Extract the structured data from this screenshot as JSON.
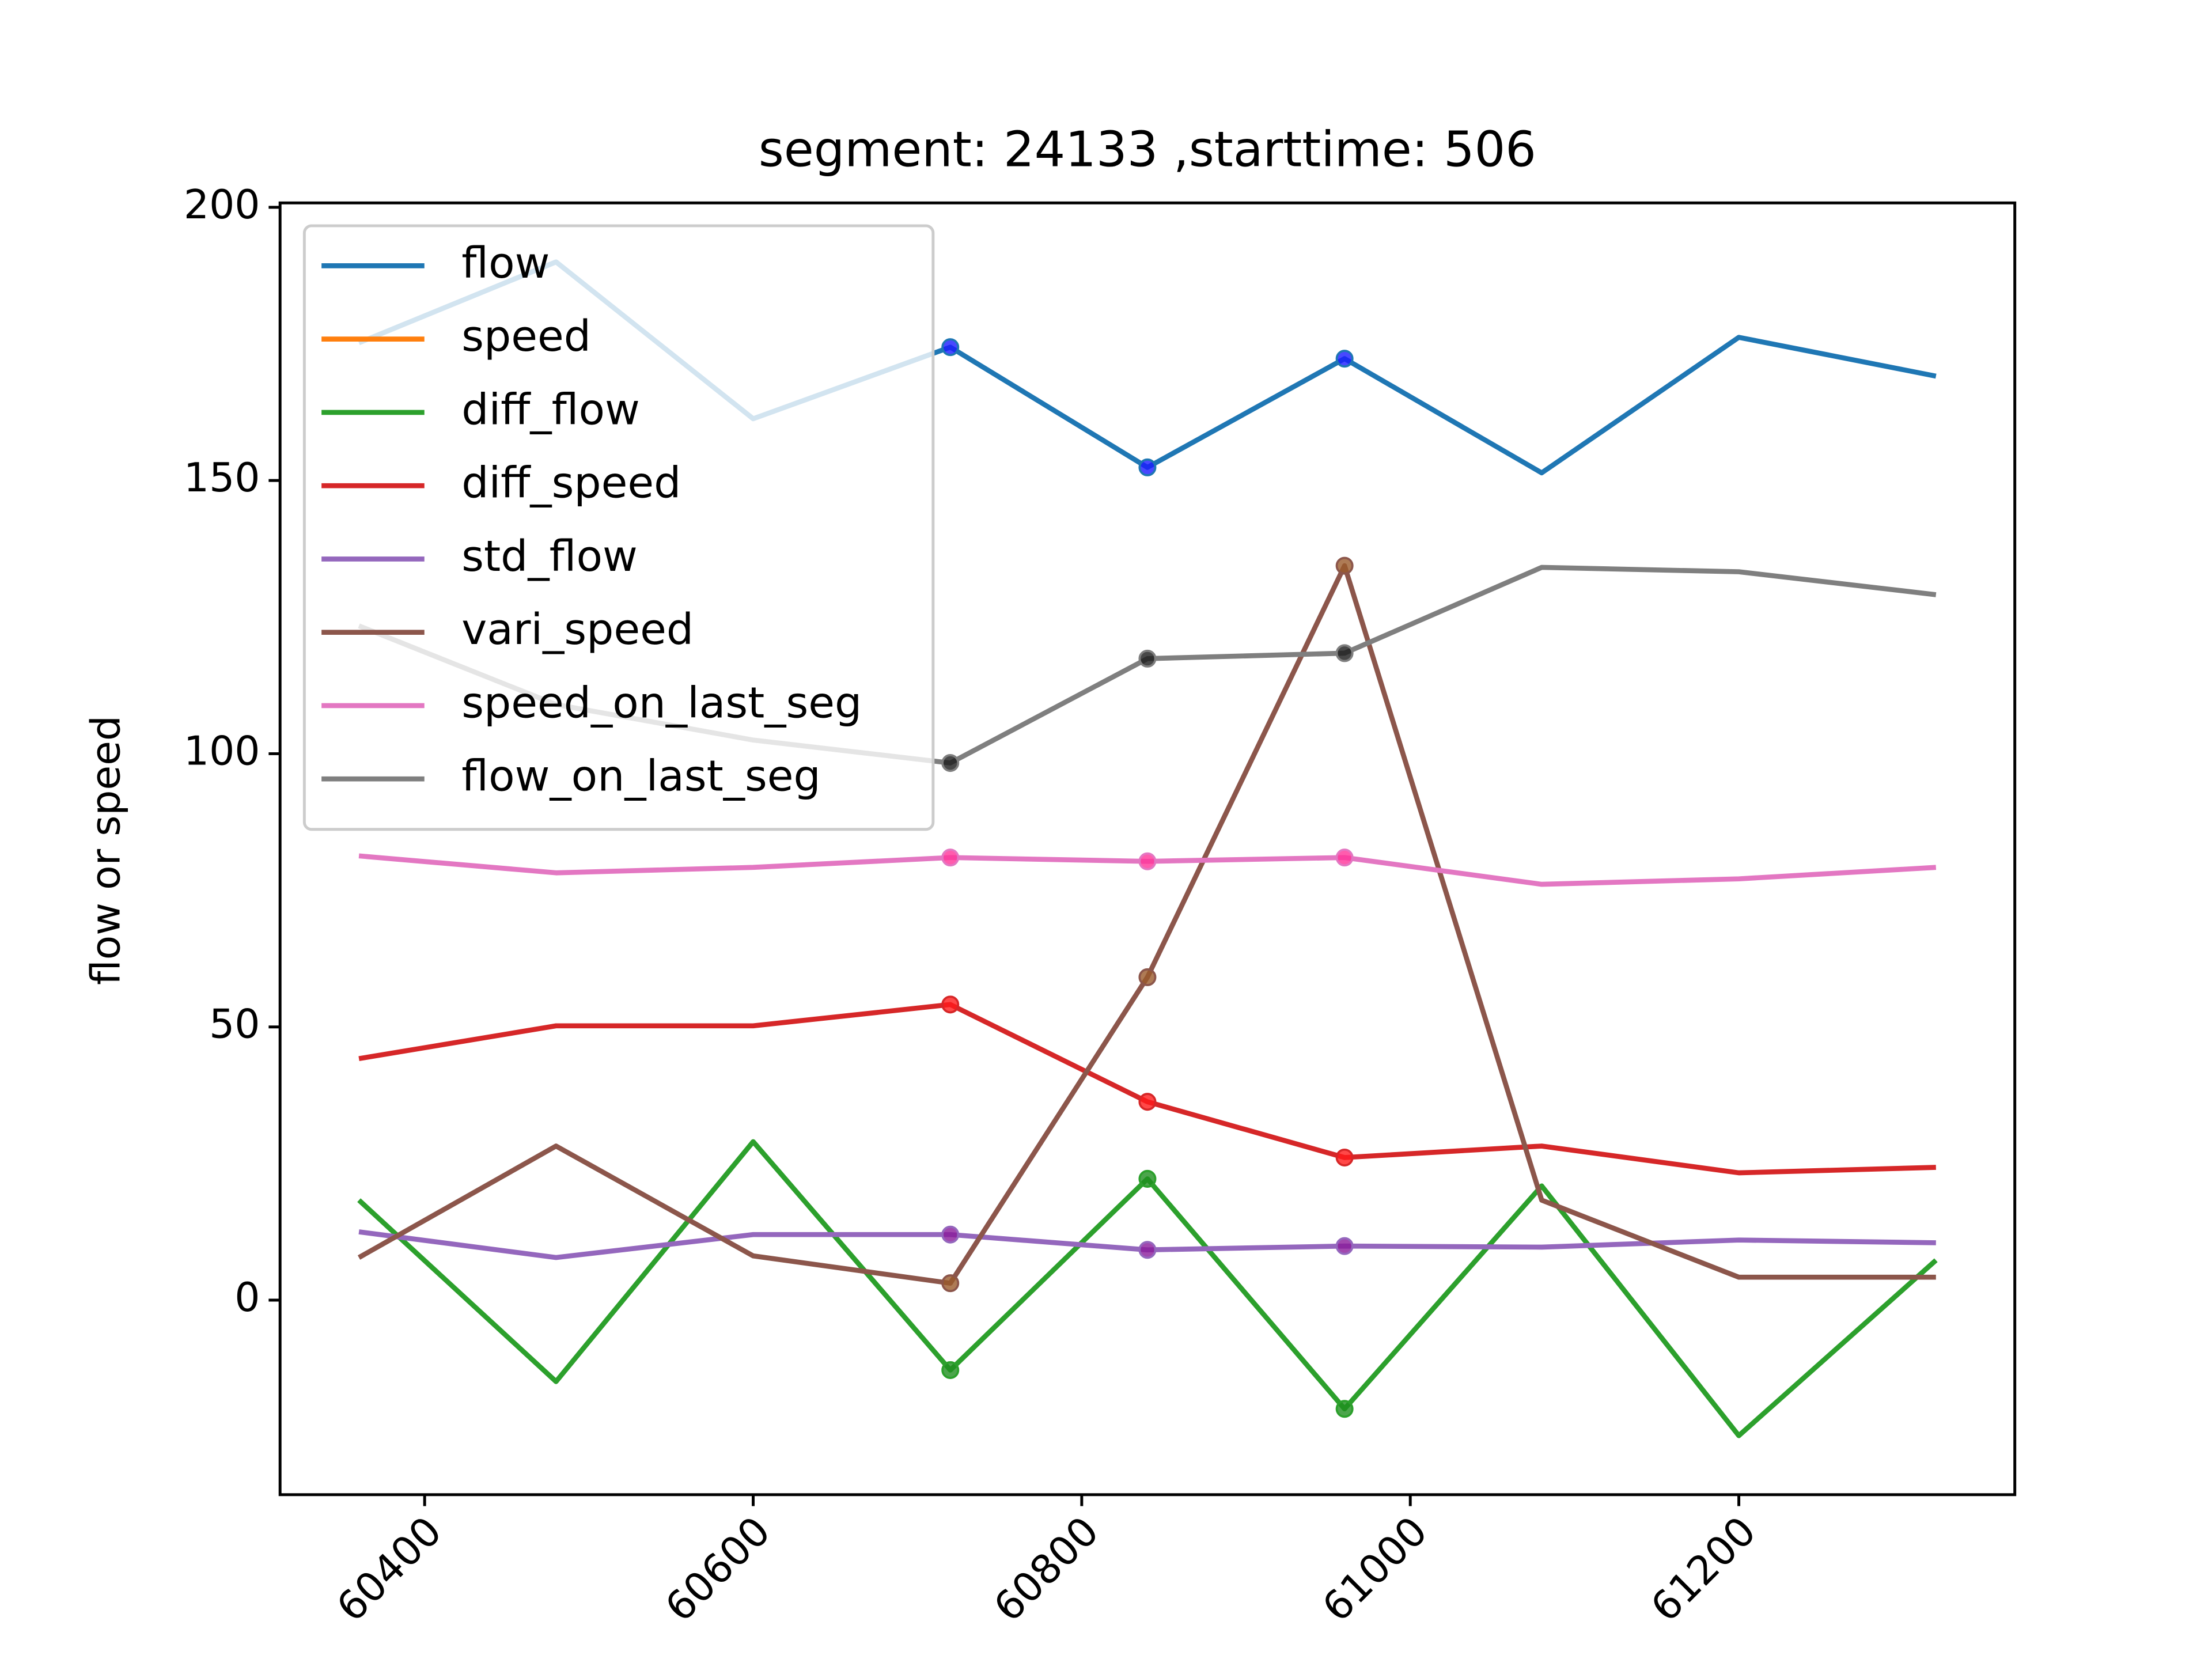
{
  "chart_data": {
    "type": "line",
    "title": "segment: 24133 ,starttime: 506",
    "y_label": "flow or speed",
    "x": [
      60360,
      60480,
      60600,
      60720,
      60840,
      60960,
      61080,
      61200,
      61320
    ],
    "xlim": [
      60312,
      61368
    ],
    "xticks": [
      60400,
      60600,
      60800,
      61000,
      61200
    ],
    "ylim": [
      -35.6,
      200.8
    ],
    "yticks": [
      0,
      50,
      100,
      150,
      200
    ],
    "legend": "upper left",
    "marker_indices": [
      3,
      4,
      5
    ],
    "series": [
      {
        "name": "flow",
        "color": "#1f77b4",
        "marker_color": "#1a1aff",
        "values": [
          175.2,
          190,
          161.3,
          174.4,
          152.4,
          172.3,
          151.4,
          176.2,
          169.1
        ]
      },
      {
        "name": "speed",
        "color": "#ff7f0e",
        "marker_color": "#ff6600",
        "values": [
          null,
          null,
          null,
          null,
          null,
          null,
          null,
          null,
          null
        ]
      },
      {
        "name": "diff_flow",
        "color": "#2ca02c",
        "marker_color": "#1f8f1f",
        "values": [
          18.3,
          -14.9,
          29,
          -12.8,
          22.2,
          -19.9,
          20.9,
          -24.8,
          7.3
        ]
      },
      {
        "name": "diff_speed",
        "color": "#d62728",
        "marker_color": "#ff1a1a",
        "values": [
          44.2,
          50.2,
          50.2,
          54.1,
          36.3,
          26.1,
          28.2,
          23.3,
          24.3
        ]
      },
      {
        "name": "std_flow",
        "color": "#9467bd",
        "marker_color": "#8a1a9a",
        "values": [
          12.5,
          7.8,
          12,
          12,
          9.2,
          9.9,
          9.7,
          11,
          10.5
        ]
      },
      {
        "name": "vari_speed",
        "color": "#8c564b",
        "marker_color": "#9a5a2a",
        "values": [
          7.8,
          28.2,
          8.1,
          3.1,
          59.1,
          134.4,
          18.3,
          4.2,
          4.2
        ]
      },
      {
        "name": "speed_on_last_seg",
        "color": "#e377c2",
        "marker_color": "#ff3399",
        "values": [
          81.3,
          78.2,
          79.2,
          81,
          80.3,
          81,
          76.1,
          77.1,
          79.2
        ]
      },
      {
        "name": "flow_on_last_seg",
        "color": "#7f7f7f",
        "marker_color": "#1a1a1a",
        "values": [
          123.4,
          109,
          102.5,
          98.3,
          117.4,
          118.4,
          134.1,
          133.3,
          129.1
        ]
      }
    ]
  }
}
